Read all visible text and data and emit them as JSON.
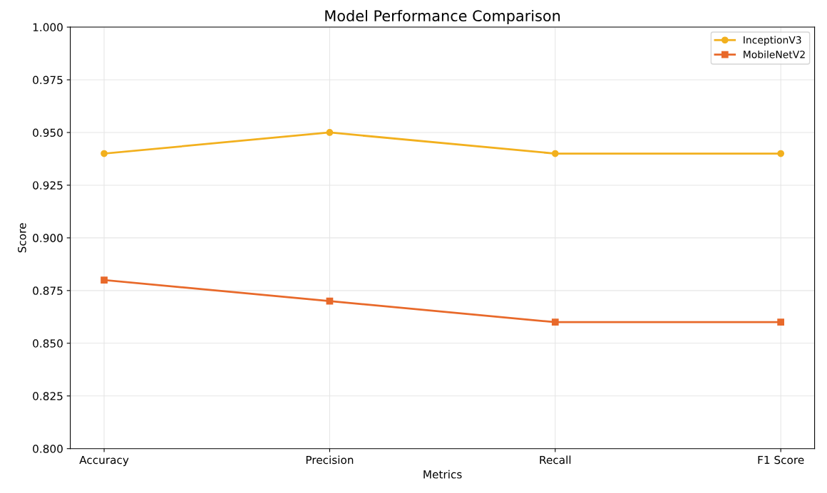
{
  "chart_data": {
    "type": "line",
    "title": "Model Performance Comparison",
    "xlabel": "Metrics",
    "ylabel": "Score",
    "categories": [
      "Accuracy",
      "Precision",
      "Recall",
      "F1 Score"
    ],
    "series": [
      {
        "name": "InceptionV3",
        "color": "#f2b01e",
        "marker": "circle",
        "values": [
          0.94,
          0.95,
          0.94,
          0.94
        ]
      },
      {
        "name": "MobileNetV2",
        "color": "#e8692a",
        "marker": "square",
        "values": [
          0.88,
          0.87,
          0.86,
          0.86
        ]
      }
    ],
    "ylim": [
      0.8,
      1.0
    ],
    "yticks": [
      {
        "value": 0.8,
        "label": "0.800"
      },
      {
        "value": 0.825,
        "label": "0.825"
      },
      {
        "value": 0.85,
        "label": "0.850"
      },
      {
        "value": 0.875,
        "label": "0.875"
      },
      {
        "value": 0.9,
        "label": "0.900"
      },
      {
        "value": 0.925,
        "label": "0.925"
      },
      {
        "value": 0.95,
        "label": "0.950"
      },
      {
        "value": 0.975,
        "label": "0.975"
      },
      {
        "value": 1.0,
        "label": "1.000"
      }
    ],
    "grid": true,
    "legend": "top right",
    "line_style": "solid"
  }
}
